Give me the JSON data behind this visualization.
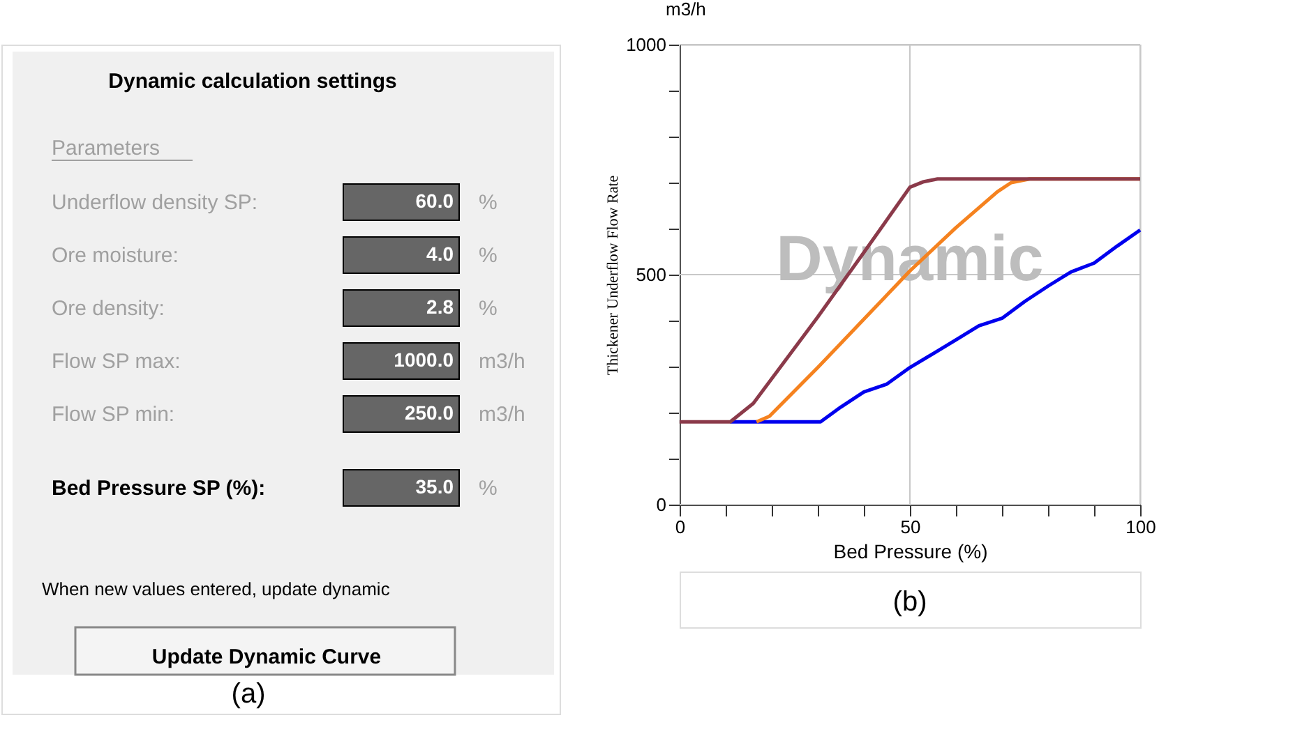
{
  "chart_data": [
    {
      "type": "other",
      "title": "Dynamic calculation settings",
      "annotations": [
        "Parameters",
        "Underflow density SP:",
        "60.0",
        "%",
        "Ore moisture:",
        "4.0",
        "%",
        "Ore density:",
        "2.8",
        "%",
        "Flow SP max:",
        "1000.0",
        "m3/h",
        "Flow SP min:",
        "250.0",
        "m3/h",
        "Bed Pressure SP (%):",
        "35.0",
        "%",
        "When new values entered, update dynamic",
        "Update Dynamic Curve",
        "(a)"
      ]
    },
    {
      "type": "line",
      "xlabel": "Bed Pressure (%)",
      "ylabel": "Thickener Underflow Flow Rate",
      "annotations": [
        "m3/h",
        "Dynamic",
        "(b)"
      ],
      "xlim": [
        0,
        100
      ],
      "ylim": [
        0,
        1000
      ],
      "xticks": [
        0,
        {
          "value": 10,
          "label": null
        },
        {
          "value": 20,
          "label": null
        },
        {
          "value": 30,
          "label": null
        },
        {
          "value": 40,
          "label": null
        },
        50,
        {
          "value": 60,
          "label": null
        },
        {
          "value": 70,
          "label": null
        },
        {
          "value": 80,
          "label": null
        },
        {
          "value": 90,
          "label": null
        },
        100
      ],
      "yticks": [
        0,
        {
          "value": 100,
          "label": null
        },
        {
          "value": 200,
          "label": null
        },
        {
          "value": 300,
          "label": null
        },
        {
          "value": 400,
          "label": null
        },
        500,
        {
          "value": 600,
          "label": null
        },
        {
          "value": 700,
          "label": null
        },
        {
          "value": 800,
          "label": null
        },
        {
          "value": 900,
          "label": null
        },
        1000
      ],
      "grid": true,
      "line_style": "solid",
      "marker": "none",
      "series": [
        {
          "color": "#0000ee",
          "x": [
            11,
            30.6,
            35,
            40,
            45,
            50,
            55,
            60,
            65,
            70,
            75,
            80,
            85,
            90,
            95,
            100
          ],
          "values": [
            180,
            180,
            212,
            245,
            262,
            298,
            328,
            358,
            389,
            405,
            442,
            475,
            506,
            525,
            562,
            597
          ]
        },
        {
          "color": "#f5821f",
          "x": [
            16.7,
            19.5,
            30,
            40,
            50,
            60,
            69,
            72,
            76,
            100
          ],
          "values": [
            180,
            192,
            298,
            403,
            508,
            602,
            680,
            700,
            708,
            708
          ]
        },
        {
          "color": "#8b3a4a",
          "x": [
            0,
            11,
            16,
            30,
            40,
            50,
            53,
            56,
            100
          ],
          "values": [
            180,
            180,
            220,
            408,
            548,
            690,
            702,
            708,
            708
          ]
        }
      ]
    }
  ]
}
